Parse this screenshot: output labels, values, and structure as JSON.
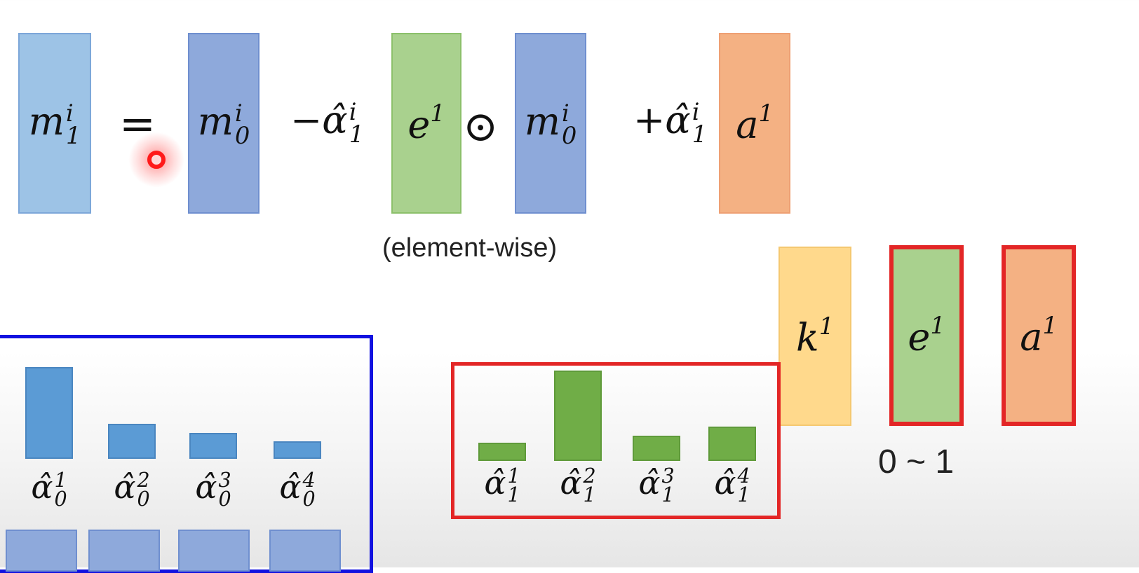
{
  "equation": {
    "lhs": {
      "base": "m",
      "sup": "i",
      "sub": "1"
    },
    "equals": "=",
    "term1": {
      "base": "m",
      "sup": "i",
      "sub": "0"
    },
    "minus_coef": {
      "sign": "−",
      "base": "α̂",
      "sup": "i",
      "sub": "1"
    },
    "erase": {
      "base": "e",
      "sup": "1"
    },
    "odot": "⊙",
    "term2": {
      "base": "m",
      "sup": "i",
      "sub": "0"
    },
    "plus_coef": {
      "sign": "+",
      "base": "α̂",
      "sup": "i",
      "sub": "1"
    },
    "add": {
      "base": "a",
      "sup": "1"
    },
    "note": "(element-wise)"
  },
  "vectors": {
    "key": {
      "base": "k",
      "sup": "1"
    },
    "erase": {
      "base": "e",
      "sup": "1"
    },
    "add": {
      "base": "a",
      "sup": "1"
    },
    "range": "0 ~ 1"
  },
  "attention_old": {
    "labels": [
      {
        "base": "α̂",
        "sup": "1",
        "sub": "0"
      },
      {
        "base": "α̂",
        "sup": "2",
        "sub": "0"
      },
      {
        "base": "α̂",
        "sup": "3",
        "sub": "0"
      },
      {
        "base": "α̂",
        "sup": "4",
        "sub": "0"
      }
    ],
    "values": [
      1.0,
      0.38,
      0.28,
      0.19
    ]
  },
  "attention_new": {
    "labels": [
      {
        "base": "α̂",
        "sup": "1",
        "sub": "1"
      },
      {
        "base": "α̂",
        "sup": "2",
        "sub": "1"
      },
      {
        "base": "α̂",
        "sup": "3",
        "sub": "1"
      },
      {
        "base": "α̂",
        "sup": "4",
        "sub": "1"
      }
    ],
    "values": [
      0.2,
      1.0,
      0.28,
      0.38
    ]
  },
  "colors": {
    "blue_light": "#9dc3e6",
    "blue": "#8ea9db",
    "green": "#a9d18e",
    "orange": "#f4b183",
    "yellow": "#ffd98c",
    "bar_blue": "#5b9bd5",
    "bar_green": "#70ad47",
    "frame_blue": "#1212e0",
    "frame_red": "#e32626"
  }
}
